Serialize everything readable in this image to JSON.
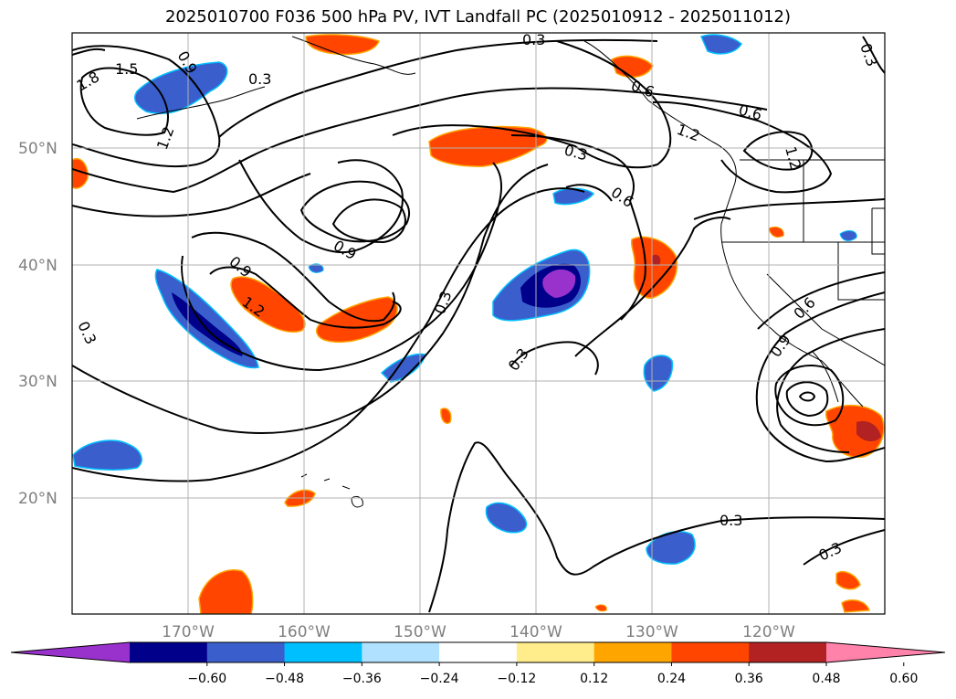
{
  "title": "2025010700 F036 500 hPa PV, IVT Landfall PC (2025010912 - 2025011012)",
  "lat_labels": [
    "50°N",
    "40°N",
    "30°N",
    "20°N"
  ],
  "lon_labels": [
    "170°W",
    "160°W",
    "150°W",
    "140°W",
    "130°W",
    "120°W"
  ],
  "contour_labels": [
    "1.5",
    "1.8",
    "0.9",
    "0.3",
    "1.2",
    "0.3",
    "0.6",
    "0.3",
    "0.6",
    "1.2",
    "0.9",
    "0.9",
    "1.2",
    "0.3",
    "0.3",
    "0.3",
    "0.6",
    "0.9",
    "0.3",
    "0.3",
    "0.3",
    "1.2",
    "0.6"
  ],
  "colorbar": {
    "colors": [
      "#9932cc",
      "#00008b",
      "#3a5fcd",
      "#00bfff",
      "#b0e2ff",
      "#ffffff",
      "#ffec8b",
      "#ffa500",
      "#ff4500",
      "#b22222",
      "#ff82ab"
    ],
    "tick_labels": [
      "−0.60",
      "−0.48",
      "−0.36",
      "−0.24",
      "−0.12",
      "0.12",
      "0.24",
      "0.36",
      "0.48",
      "0.60"
    ]
  }
}
